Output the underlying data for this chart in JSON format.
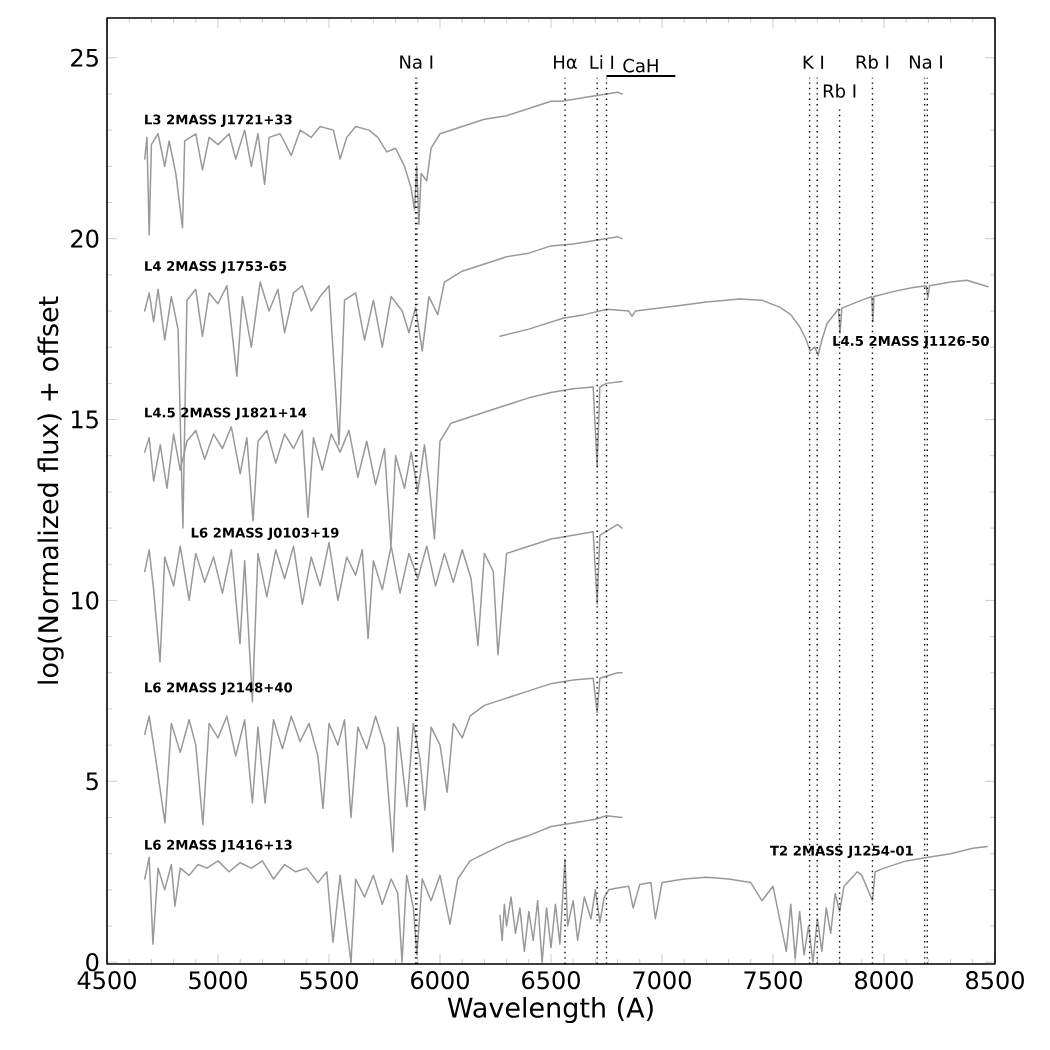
{
  "chart_data": {
    "type": "line",
    "xlabel": "Wavelength (A)",
    "ylabel": "log(Normalized flux) + offset",
    "xlim": [
      4500,
      8500
    ],
    "ylim": [
      -0.05,
      26.1
    ],
    "xticks": [
      4500,
      5000,
      5500,
      6000,
      6500,
      7000,
      7500,
      8000,
      8500
    ],
    "yticks": [
      0,
      5,
      10,
      15,
      20,
      25
    ],
    "grid": false,
    "line_style": "solid",
    "series": [
      {
        "name": "L3 2MASS J1721+33",
        "color": "#999999",
        "x": [
          4670,
          4680,
          4690,
          4700,
          4730,
          4760,
          4780,
          4810,
          4840,
          4850,
          4900,
          4930,
          4960,
          5000,
          5050,
          5080,
          5120,
          5150,
          5180,
          5210,
          5230,
          5280,
          5330,
          5370,
          5420,
          5460,
          5520,
          5550,
          5580,
          5620,
          5680,
          5720,
          5760,
          5800,
          5840,
          5870,
          5885,
          5895,
          5905,
          5915,
          5940,
          5960,
          6000,
          6100,
          6200,
          6300,
          6400,
          6500,
          6550,
          6650,
          6750,
          6800,
          6820
        ],
        "values": [
          22.2,
          22.8,
          20.1,
          22.6,
          22.9,
          22.0,
          22.7,
          21.8,
          20.3,
          22.7,
          22.9,
          21.9,
          22.8,
          22.6,
          22.9,
          22.2,
          23.0,
          22.0,
          22.9,
          21.5,
          22.8,
          22.9,
          22.3,
          23.0,
          22.8,
          23.1,
          23.0,
          22.2,
          22.8,
          23.1,
          23.0,
          22.8,
          22.4,
          22.5,
          22.0,
          21.4,
          20.8,
          22.0,
          20.4,
          21.8,
          21.6,
          22.5,
          22.9,
          23.1,
          23.3,
          23.4,
          23.6,
          23.8,
          23.8,
          23.9,
          24.0,
          24.05,
          24.0
        ]
      },
      {
        "name": "L4 2MASS J1753-65",
        "color": "#999999",
        "x": [
          4670,
          4690,
          4710,
          4730,
          4760,
          4790,
          4820,
          4842,
          4860,
          4900,
          4930,
          4960,
          5000,
          5040,
          5085,
          5110,
          5150,
          5190,
          5230,
          5270,
          5300,
          5340,
          5380,
          5420,
          5460,
          5500,
          5545,
          5570,
          5620,
          5660,
          5700,
          5740,
          5780,
          5830,
          5860,
          5890,
          5920,
          5950,
          5990,
          6020,
          6100,
          6200,
          6300,
          6400,
          6500,
          6600,
          6700,
          6800,
          6820
        ],
        "values": [
          18.0,
          18.5,
          17.7,
          18.6,
          17.2,
          18.4,
          17.5,
          12.0,
          18.3,
          18.6,
          17.3,
          18.5,
          18.2,
          18.7,
          16.2,
          18.4,
          17.0,
          18.8,
          18.0,
          18.6,
          17.4,
          18.5,
          18.7,
          18.0,
          18.4,
          18.7,
          14.3,
          18.3,
          18.5,
          17.2,
          18.3,
          17.0,
          18.4,
          18.0,
          17.4,
          18.1,
          16.9,
          18.4,
          17.9,
          18.8,
          19.1,
          19.3,
          19.5,
          19.6,
          19.8,
          19.85,
          19.95,
          20.05,
          20.0
        ]
      },
      {
        "name": "L4.5 2MASS J1821+14",
        "color": "#999999",
        "x": [
          4670,
          4690,
          4710,
          4740,
          4770,
          4800,
          4830,
          4860,
          4900,
          4940,
          4980,
          5020,
          5060,
          5100,
          5130,
          5158,
          5180,
          5220,
          5260,
          5300,
          5340,
          5380,
          5405,
          5430,
          5470,
          5510,
          5550,
          5590,
          5630,
          5670,
          5710,
          5750,
          5779,
          5800,
          5840,
          5870,
          5900,
          5930,
          5950,
          5975,
          6000,
          6050,
          6100,
          6200,
          6300,
          6400,
          6500,
          6600,
          6690,
          6708,
          6720,
          6750,
          6820
        ],
        "values": [
          14.1,
          14.5,
          13.3,
          14.3,
          13.1,
          14.6,
          13.6,
          14.4,
          14.7,
          13.9,
          14.6,
          14.2,
          14.8,
          13.5,
          14.5,
          12.2,
          14.4,
          14.7,
          13.8,
          14.6,
          14.2,
          14.7,
          12.3,
          14.5,
          13.6,
          14.6,
          14.1,
          14.7,
          13.4,
          14.4,
          13.2,
          14.2,
          11.5,
          14.0,
          13.1,
          14.1,
          13.0,
          14.3,
          13.3,
          11.7,
          14.4,
          14.9,
          15.0,
          15.2,
          15.4,
          15.6,
          15.75,
          15.85,
          15.9,
          13.7,
          15.9,
          16.0,
          16.05
        ]
      },
      {
        "name": "L6 2MASS J0103+19",
        "color": "#999999",
        "x": [
          4670,
          4690,
          4710,
          4739,
          4760,
          4800,
          4830,
          4870,
          4900,
          4940,
          4980,
          5020,
          5060,
          5099,
          5120,
          5155,
          5180,
          5220,
          5260,
          5300,
          5340,
          5380,
          5420,
          5460,
          5500,
          5540,
          5580,
          5620,
          5650,
          5676,
          5700,
          5740,
          5780,
          5820,
          5860,
          5900,
          5940,
          5980,
          6020,
          6060,
          6100,
          6140,
          6171,
          6200,
          6240,
          6261,
          6300,
          6400,
          6500,
          6600,
          6690,
          6708,
          6720,
          6800,
          6820
        ],
        "values": [
          10.8,
          11.4,
          10.3,
          8.3,
          11.2,
          10.4,
          11.5,
          10.0,
          11.3,
          10.5,
          11.2,
          10.2,
          11.4,
          8.8,
          11.1,
          7.2,
          11.3,
          10.1,
          11.4,
          10.6,
          11.5,
          9.9,
          11.2,
          10.4,
          11.6,
          10.0,
          11.2,
          10.7,
          11.4,
          8.95,
          11.1,
          10.3,
          11.5,
          10.2,
          11.3,
          10.6,
          11.5,
          10.4,
          11.3,
          10.5,
          11.4,
          10.6,
          8.75,
          11.3,
          10.8,
          8.5,
          11.3,
          11.5,
          11.7,
          11.8,
          11.9,
          9.9,
          11.8,
          12.1,
          12.0
        ]
      },
      {
        "name": "L6 2MASS J2148+40",
        "color": "#999999",
        "x": [
          4670,
          4690,
          4720,
          4761,
          4790,
          4830,
          4870,
          4900,
          4932,
          4960,
          5000,
          5040,
          5080,
          5120,
          5155,
          5180,
          5212,
          5250,
          5290,
          5330,
          5370,
          5410,
          5450,
          5473,
          5500,
          5540,
          5570,
          5599,
          5630,
          5670,
          5710,
          5750,
          5788,
          5810,
          5851,
          5880,
          5910,
          5932,
          5960,
          6000,
          6032,
          6060,
          6100,
          6135,
          6200,
          6300,
          6400,
          6500,
          6600,
          6690,
          6708,
          6720,
          6800,
          6820
        ],
        "values": [
          6.3,
          6.8,
          5.6,
          3.85,
          6.6,
          5.8,
          6.7,
          6.0,
          3.8,
          6.6,
          6.2,
          6.8,
          5.7,
          6.7,
          4.4,
          6.5,
          4.4,
          6.7,
          5.9,
          6.8,
          6.1,
          6.6,
          5.7,
          4.25,
          6.6,
          6.0,
          6.7,
          4.0,
          6.5,
          5.9,
          6.8,
          6.0,
          3.05,
          6.5,
          4.3,
          6.6,
          5.6,
          4.2,
          6.5,
          6.0,
          4.7,
          6.6,
          6.2,
          6.8,
          7.1,
          7.3,
          7.5,
          7.7,
          7.8,
          7.85,
          6.9,
          7.85,
          8.0,
          8.0
        ]
      },
      {
        "name": "L6 2MASS J1416+13",
        "color": "#999999",
        "x": [
          4670,
          4690,
          4707,
          4730,
          4760,
          4790,
          4806,
          4830,
          4870,
          4910,
          4950,
          5000,
          5050,
          5100,
          5150,
          5200,
          5250,
          5300,
          5350,
          5400,
          5450,
          5490,
          5518,
          5550,
          5599,
          5620,
          5660,
          5700,
          5740,
          5780,
          5810,
          5829,
          5850,
          5880,
          5896,
          5920,
          5960,
          6000,
          6045,
          6080,
          6135,
          6200,
          6300,
          6400,
          6500,
          6600,
          6700,
          6750,
          6820
        ],
        "values": [
          2.3,
          2.9,
          0.5,
          2.6,
          2.0,
          2.7,
          1.55,
          2.6,
          2.4,
          2.7,
          2.6,
          2.8,
          2.5,
          2.75,
          2.6,
          2.8,
          2.3,
          2.7,
          2.5,
          2.6,
          2.2,
          2.5,
          0.55,
          2.4,
          0.0,
          2.3,
          1.8,
          2.4,
          1.6,
          2.3,
          1.9,
          0.0,
          2.4,
          1.5,
          0.2,
          2.3,
          1.7,
          2.4,
          1.05,
          2.3,
          2.8,
          3.0,
          3.3,
          3.5,
          3.75,
          3.85,
          3.95,
          4.05,
          4.0
        ]
      },
      {
        "name": "L4.5 2MASS J1126-50",
        "color": "#999999",
        "x": [
          6270,
          6400,
          6554,
          6650,
          6752,
          6850,
          6865,
          6880,
          7081,
          7200,
          7351,
          7450,
          7532,
          7580,
          7622,
          7650,
          7667,
          7689,
          7703,
          7720,
          7743,
          7795,
          7802,
          7810,
          7900,
          7945,
          7950,
          7955,
          8050,
          8131,
          8190,
          8198,
          8205,
          8300,
          8374,
          8468
        ],
        "values": [
          17.3,
          17.5,
          17.8,
          17.9,
          18.05,
          18.0,
          17.85,
          18.0,
          18.15,
          18.25,
          18.33,
          18.3,
          18.1,
          17.9,
          17.55,
          17.2,
          16.9,
          17.0,
          16.77,
          17.2,
          17.65,
          18.06,
          17.38,
          18.08,
          18.3,
          18.4,
          17.7,
          18.4,
          18.55,
          18.65,
          18.7,
          18.37,
          18.7,
          18.8,
          18.85,
          18.67
        ]
      },
      {
        "name": "T2 2MASS J1254-01",
        "color": "#999999",
        "x": [
          6270,
          6280,
          6290,
          6300,
          6320,
          6340,
          6360,
          6380,
          6400,
          6420,
          6440,
          6460,
          6480,
          6500,
          6520,
          6540,
          6563,
          6575,
          6600,
          6620,
          6650,
          6680,
          6700,
          6720,
          6740,
          6760,
          6800,
          6850,
          6870,
          6900,
          6950,
          6970,
          7000,
          7100,
          7200,
          7300,
          7400,
          7450,
          7500,
          7530,
          7560,
          7580,
          7600,
          7620,
          7640,
          7660,
          7680,
          7700,
          7720,
          7740,
          7760,
          7780,
          7800,
          7820,
          7850,
          7880,
          7900,
          7948,
          7960,
          8000,
          8100,
          8200,
          8300,
          8400,
          8465
        ],
        "values": [
          1.3,
          0.6,
          1.6,
          1.0,
          1.8,
          0.8,
          1.5,
          0.3,
          1.4,
          0.6,
          1.7,
          0.0,
          1.5,
          0.4,
          1.6,
          0.5,
          2.85,
          1.0,
          1.7,
          0.6,
          1.8,
          1.2,
          2.0,
          1.1,
          1.8,
          2.0,
          2.05,
          2.1,
          1.5,
          2.15,
          2.2,
          1.2,
          2.2,
          2.3,
          2.35,
          2.3,
          2.2,
          1.7,
          2.1,
          1.2,
          0.3,
          1.6,
          0.1,
          1.4,
          0.2,
          1.0,
          0.0,
          1.2,
          0.3,
          1.5,
          0.8,
          1.9,
          1.4,
          2.1,
          2.3,
          2.5,
          2.4,
          1.7,
          2.5,
          2.6,
          2.8,
          2.9,
          3.0,
          3.15,
          3.2
        ]
      }
    ],
    "ref_lines": [
      {
        "axis": "x",
        "value": 5890,
        "color": "#000000",
        "line_style": "dotted",
        "label": "Na I"
      },
      {
        "axis": "x",
        "value": 5896,
        "color": "#000000",
        "line_style": "dotted"
      },
      {
        "axis": "x",
        "value": 6563,
        "color": "#000000",
        "line_style": "dotted",
        "label": "Hα"
      },
      {
        "axis": "x",
        "value": 6708,
        "color": "#000000",
        "line_style": "dotted",
        "label": "Li I"
      },
      {
        "axis": "x",
        "value": 6750,
        "color": "#000000",
        "line_style": "dotted"
      },
      {
        "axis": "x",
        "value": 7665,
        "color": "#000000",
        "line_style": "dotted",
        "label": "K I"
      },
      {
        "axis": "x",
        "value": 7699,
        "color": "#000000",
        "line_style": "dotted"
      },
      {
        "axis": "x",
        "value": 7800,
        "color": "#000000",
        "line_style": "dotted",
        "label": "Rb I"
      },
      {
        "axis": "x",
        "value": 7948,
        "color": "#000000",
        "line_style": "dotted",
        "label": "Rb I"
      },
      {
        "axis": "x",
        "value": 8183,
        "color": "#000000",
        "line_style": "dotted",
        "label": "Na I"
      },
      {
        "axis": "x",
        "value": 8195,
        "color": "#000000",
        "line_style": "dotted"
      }
    ],
    "annotations": [
      "CaH"
    ]
  }
}
